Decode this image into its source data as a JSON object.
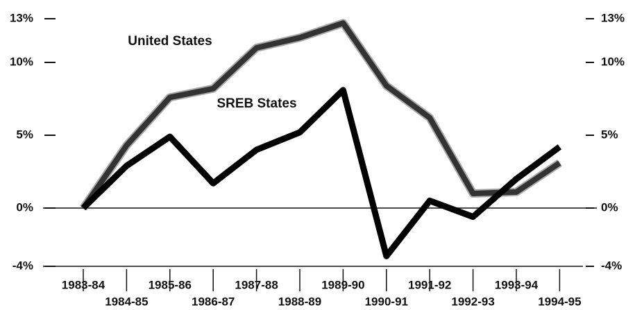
{
  "chart_data": {
    "type": "line",
    "categories": [
      "1983-84",
      "1984-85",
      "1985-86",
      "1986-87",
      "1987-88",
      "1988-89",
      "1989-90",
      "1990-91",
      "1991-92",
      "1992-93",
      "1993-94",
      "1994-95"
    ],
    "series": [
      {
        "name": "United States",
        "color": "#333333",
        "values": [
          0,
          4.3,
          7.6,
          8.2,
          11.0,
          11.7,
          12.7,
          8.4,
          6.2,
          1.0,
          1.1,
          3.1
        ]
      },
      {
        "name": "SREB States",
        "color": "#000000",
        "values": [
          0,
          2.9,
          4.9,
          1.7,
          4.0,
          5.2,
          8.1,
          -3.3,
          0.5,
          -0.6,
          2.0,
          4.2
        ]
      }
    ],
    "ylim": [
      -4,
      13
    ],
    "yticks": [
      {
        "value": -4,
        "label": "-4%"
      },
      {
        "value": 0,
        "label": "0%"
      },
      {
        "value": 5,
        "label": "5%"
      },
      {
        "value": 10,
        "label": "10%"
      },
      {
        "value": 13,
        "label": "13%"
      }
    ],
    "y2lim": [
      -4,
      13
    ],
    "y2ticks": [
      {
        "value": -4,
        "label": "-4%"
      },
      {
        "value": 0,
        "label": "0%"
      },
      {
        "value": 5,
        "label": "5%"
      },
      {
        "value": 10,
        "label": "10%"
      },
      {
        "value": 13,
        "label": "13%"
      }
    ]
  }
}
